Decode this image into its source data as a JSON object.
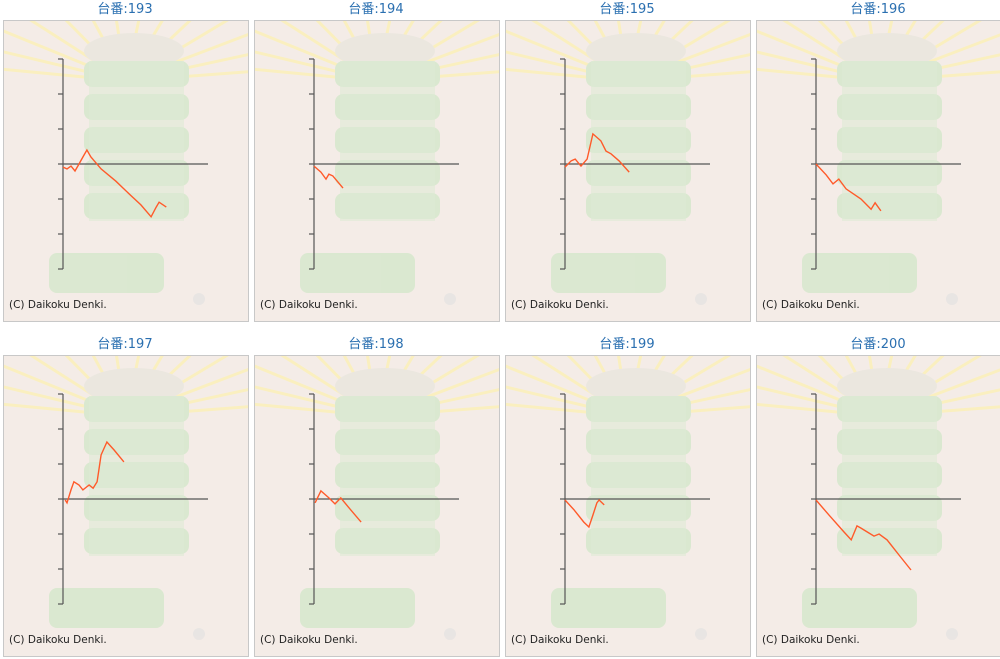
{
  "chart_data": [
    {
      "type": "line",
      "title": "台番:193",
      "credit": "(C) Daikoku Denki.",
      "color": "#ff5a2a",
      "xlim": [
        0,
        4
      ],
      "ylim": [
        -3,
        3
      ],
      "yticks": [
        -3,
        -2,
        -1,
        0,
        1,
        2,
        3
      ],
      "x": [
        0,
        0.11,
        0.22,
        0.33,
        0.44,
        0.55,
        0.66,
        0.77,
        1.05,
        1.46,
        1.88,
        2.15,
        2.43,
        2.57,
        2.65,
        2.85
      ],
      "values": [
        -0.09,
        -0.14,
        -0.06,
        -0.2,
        0,
        0.2,
        0.4,
        0.2,
        -0.14,
        -0.49,
        -0.91,
        -1.17,
        -1.51,
        -1.23,
        -1.09,
        -1.23
      ]
    },
    {
      "type": "line",
      "title": "台番:194",
      "credit": "(C) Daikoku Denki.",
      "color": "#ff5a2a",
      "xlim": [
        0,
        4
      ],
      "ylim": [
        -3,
        3
      ],
      "yticks": [
        -3,
        -2,
        -1,
        0,
        1,
        2,
        3
      ],
      "x": [
        0,
        0.19,
        0.33,
        0.41,
        0.52,
        0.8
      ],
      "values": [
        -0.06,
        -0.23,
        -0.43,
        -0.29,
        -0.34,
        -0.69
      ]
    },
    {
      "type": "line",
      "title": "台番:195",
      "credit": "(C) Daikoku Denki.",
      "color": "#ff5a2a",
      "xlim": [
        0,
        4
      ],
      "ylim": [
        -3,
        3
      ],
      "yticks": [
        -3,
        -2,
        -1,
        0,
        1,
        2,
        3
      ],
      "x": [
        0,
        0.17,
        0.28,
        0.44,
        0.61,
        0.77,
        0.99,
        1.13,
        1.27,
        1.49,
        1.77
      ],
      "values": [
        -0.09,
        0.09,
        0.14,
        -0.06,
        0.14,
        0.86,
        0.66,
        0.37,
        0.29,
        0.09,
        -0.23
      ]
    },
    {
      "type": "line",
      "title": "台番:196",
      "credit": "(C) Daikoku Denki.",
      "color": "#ff5a2a",
      "xlim": [
        0,
        4
      ],
      "ylim": [
        -3,
        3
      ],
      "yticks": [
        -3,
        -2,
        -1,
        0,
        1,
        2,
        3
      ],
      "x": [
        0,
        0.28,
        0.47,
        0.63,
        0.83,
        1.24,
        1.52,
        1.63,
        1.79
      ],
      "values": [
        0,
        -0.31,
        -0.57,
        -0.43,
        -0.71,
        -1,
        -1.29,
        -1.11,
        -1.34
      ]
    },
    {
      "type": "line",
      "title": "台番:197",
      "credit": "(C) Daikoku Denki.",
      "color": "#ff5a2a",
      "xlim": [
        0,
        4
      ],
      "ylim": [
        -3,
        3
      ],
      "yticks": [
        -3,
        -2,
        -1,
        0,
        1,
        2,
        3
      ],
      "x": [
        0.06,
        0.11,
        0.22,
        0.3,
        0.44,
        0.55,
        0.72,
        0.83,
        0.94,
        1.05,
        1.21,
        1.41,
        1.68
      ],
      "values": [
        -0.03,
        -0.11,
        0.26,
        0.49,
        0.4,
        0.26,
        0.4,
        0.31,
        0.49,
        1.26,
        1.63,
        1.4,
        1.06
      ]
    },
    {
      "type": "line",
      "title": "台番:198",
      "credit": "(C) Daikoku Denki.",
      "color": "#ff5a2a",
      "xlim": [
        0,
        4
      ],
      "ylim": [
        -3,
        3
      ],
      "yticks": [
        -3,
        -2,
        -1,
        0,
        1,
        2,
        3
      ],
      "x": [
        0.03,
        0.19,
        0.41,
        0.58,
        0.74,
        0.97,
        1.3
      ],
      "values": [
        -0.11,
        0.23,
        0.03,
        -0.14,
        0.03,
        -0.26,
        -0.66
      ]
    },
    {
      "type": "line",
      "title": "台番:199",
      "credit": "(C) Daikoku Denki.",
      "color": "#ff5a2a",
      "xlim": [
        0,
        4
      ],
      "ylim": [
        -3,
        3
      ],
      "yticks": [
        -3,
        -2,
        -1,
        0,
        1,
        2,
        3
      ],
      "x": [
        0,
        0.25,
        0.52,
        0.66,
        0.77,
        0.88,
        0.94,
        1.08
      ],
      "values": [
        -0.03,
        -0.31,
        -0.66,
        -0.8,
        -0.46,
        -0.11,
        -0.03,
        -0.17
      ]
    },
    {
      "type": "line",
      "title": "台番:200",
      "credit": "(C) Daikoku Denki.",
      "color": "#ff5a2a",
      "xlim": [
        0,
        4
      ],
      "ylim": [
        -3,
        3
      ],
      "yticks": [
        -3,
        -2,
        -1,
        0,
        1,
        2,
        3
      ],
      "x": [
        0,
        0.36,
        0.77,
        0.97,
        1.13,
        1.24,
        1.41,
        1.6,
        1.74,
        1.96,
        2.29,
        2.62
      ],
      "values": [
        -0.03,
        -0.46,
        -0.94,
        -1.17,
        -0.77,
        -0.83,
        -0.94,
        -1.06,
        -1,
        -1.17,
        -1.6,
        -2.03
      ]
    }
  ]
}
